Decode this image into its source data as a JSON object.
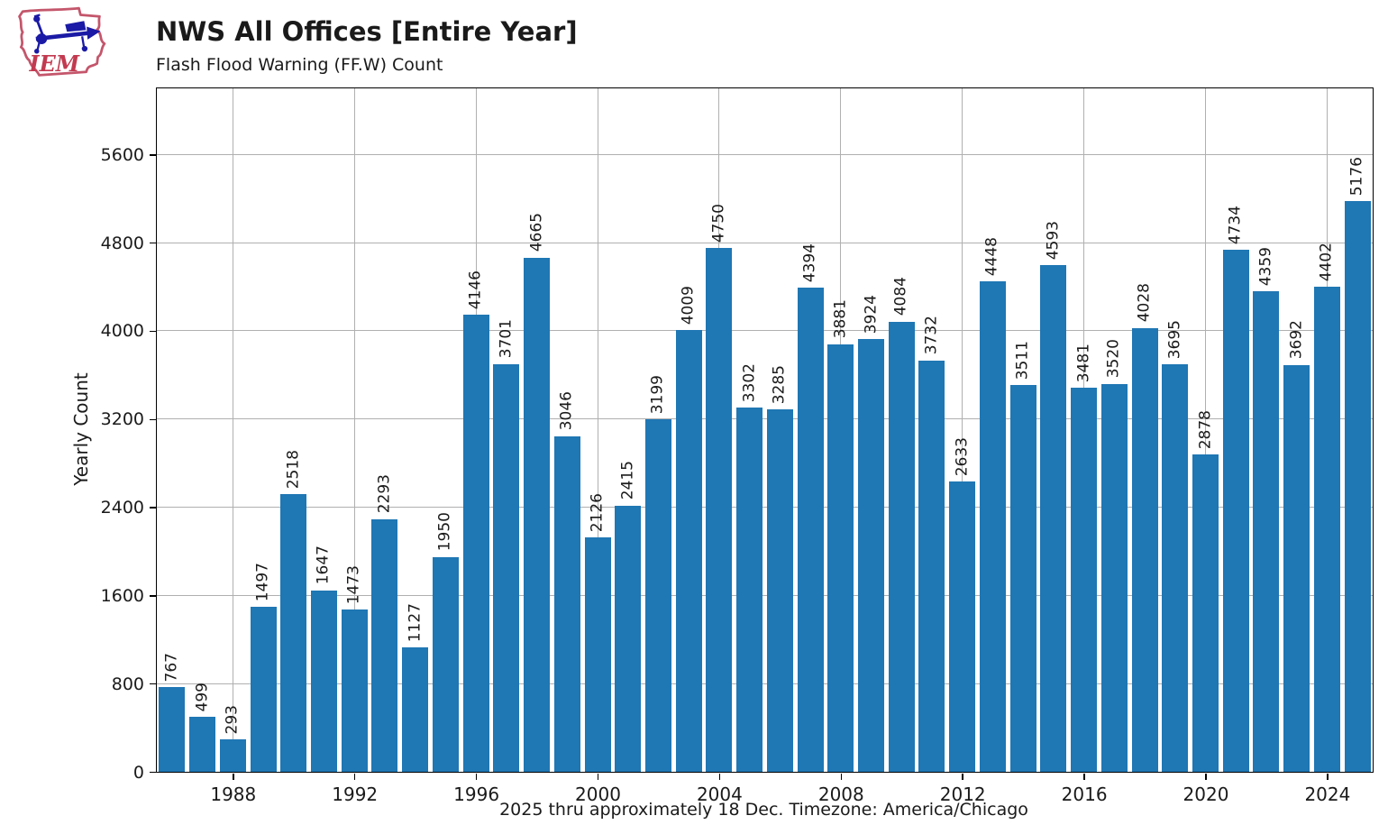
{
  "header": {
    "logo_text": "IEM",
    "title": "NWS All Offices [Entire Year]",
    "subtitle": "Flash Flood Warning (FF.W) Count"
  },
  "footer": {
    "caption": "2025 thru approximately 18 Dec. Timezone: America/Chicago"
  },
  "chart_data": {
    "type": "bar",
    "title": "NWS All Offices [Entire Year]",
    "subtitle": "Flash Flood Warning (FF.W) Count",
    "xlabel": "",
    "ylabel": "Yearly Count",
    "categories": [
      1986,
      1987,
      1988,
      1989,
      1990,
      1991,
      1992,
      1993,
      1994,
      1995,
      1996,
      1997,
      1998,
      1999,
      2000,
      2001,
      2002,
      2003,
      2004,
      2005,
      2006,
      2007,
      2008,
      2009,
      2010,
      2011,
      2012,
      2013,
      2014,
      2015,
      2016,
      2017,
      2018,
      2019,
      2020,
      2021,
      2022,
      2023,
      2024,
      2025
    ],
    "values": [
      767,
      499,
      293,
      1497,
      2518,
      1647,
      1473,
      2293,
      1127,
      1950,
      4146,
      3701,
      4665,
      3046,
      2126,
      2415,
      3199,
      4009,
      4750,
      3302,
      3285,
      4394,
      3881,
      3924,
      4084,
      3732,
      2633,
      4448,
      3511,
      4593,
      3481,
      3520,
      4028,
      3695,
      2878,
      4734,
      4359,
      3692,
      4402,
      5176
    ],
    "yticks": [
      0,
      800,
      1600,
      2400,
      3200,
      4000,
      4800,
      5600
    ],
    "xticks": [
      1988,
      1992,
      1996,
      2000,
      2004,
      2008,
      2012,
      2016,
      2020,
      2024
    ],
    "ylim": [
      0,
      6200
    ],
    "grid": true,
    "legend": "none",
    "bar_color": "#1f77b4",
    "grid_color": "#b0b0b0",
    "caption": "2025 thru approximately 18 Dec. Timezone: America/Chicago"
  }
}
